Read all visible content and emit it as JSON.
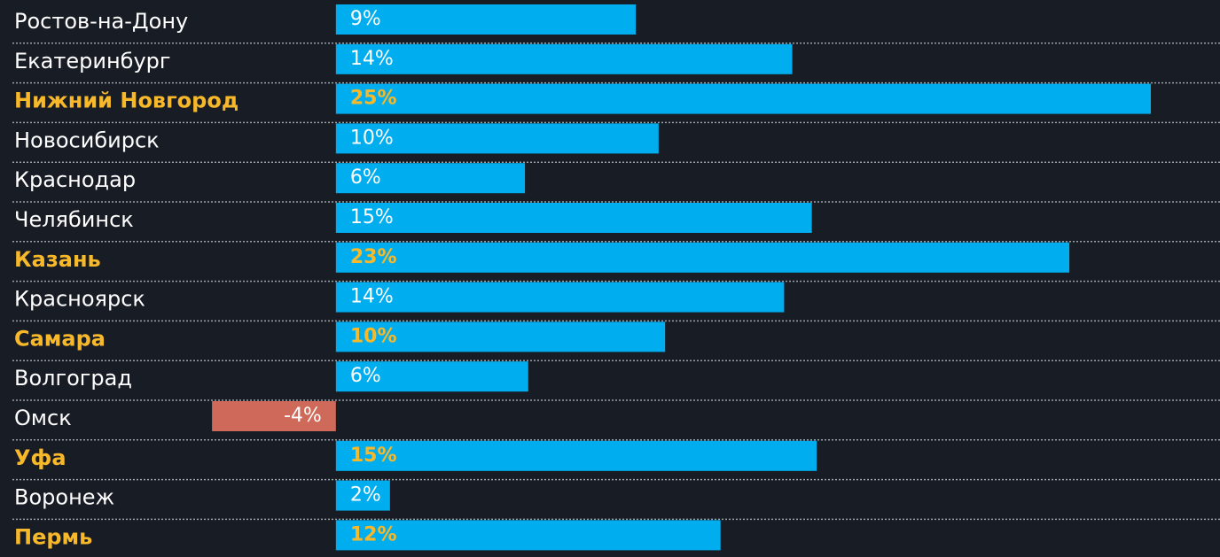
{
  "chart_data": {
    "type": "barh",
    "categories": [
      "Ростов-на-Дону",
      "Екатеринбург",
      "Нижний Новгород",
      "Новосибирск",
      "Краснодар",
      "Челябинск",
      "Казань",
      "Красноярск",
      "Самара",
      "Волгоград",
      "Омск",
      "Уфа",
      "Воронеж",
      "Пермь"
    ],
    "values": [
      9.2,
      14.0,
      25.0,
      9.9,
      5.8,
      14.6,
      22.5,
      13.75,
      10.1,
      5.9,
      -3.8,
      14.75,
      1.66,
      11.8
    ],
    "value_labels": [
      "9%",
      "14%",
      "25%",
      "10%",
      "6%",
      "15%",
      "23%",
      "14%",
      "10%",
      "6%",
      "-4%",
      "15%",
      "2%",
      "12%"
    ],
    "highlight": [
      false,
      false,
      true,
      false,
      false,
      false,
      true,
      false,
      true,
      false,
      false,
      true,
      false,
      true
    ],
    "color": "#00aeef",
    "negative_color": "#cf6a5a",
    "highlight_color": "#f7b82a",
    "xlim": [
      -5,
      25
    ]
  }
}
